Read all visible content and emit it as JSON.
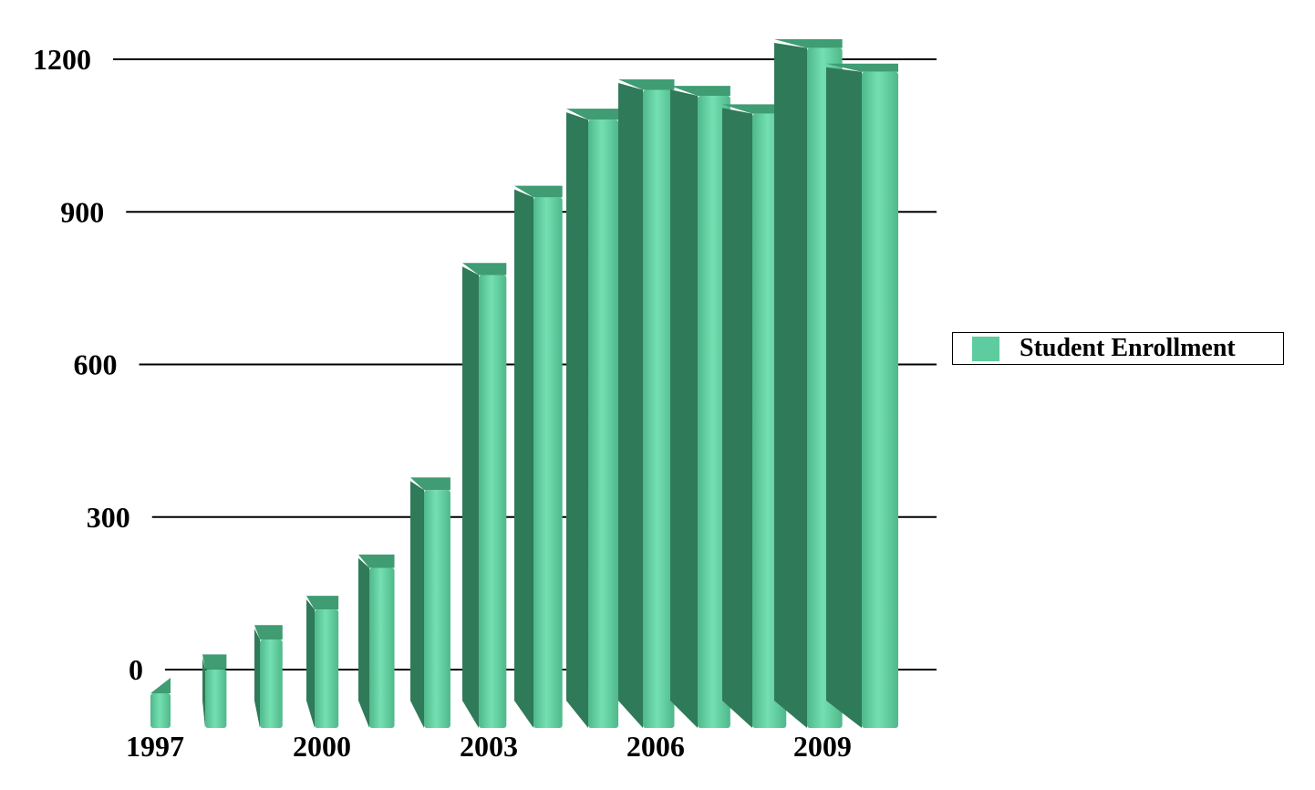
{
  "chart_data": {
    "type": "bar",
    "categories": [
      "1997",
      "1998",
      "1999",
      "2000",
      "2001",
      "2002",
      "2003",
      "2004",
      "2005",
      "2006",
      "2007",
      "2008",
      "2009",
      "2010"
    ],
    "x_tick_labels": [
      "1997",
      "2000",
      "2003",
      "2006",
      "2009"
    ],
    "series": [
      {
        "name": "Student Enrollment",
        "values": [
          0,
          40,
          90,
          140,
          210,
          340,
          700,
          830,
          960,
          1010,
          1000,
          970,
          1080,
          1040
        ]
      }
    ],
    "y_ticks": [
      "0",
      "300",
      "600",
      "900",
      "1200"
    ],
    "ylim": [
      0,
      1200
    ],
    "grid": true,
    "legend_position": "right",
    "colors": {
      "bar_front": "#5ecc9e",
      "bar_side": "#2f7a58",
      "bar_top": "#3f9c73",
      "grid": "#000000"
    }
  }
}
